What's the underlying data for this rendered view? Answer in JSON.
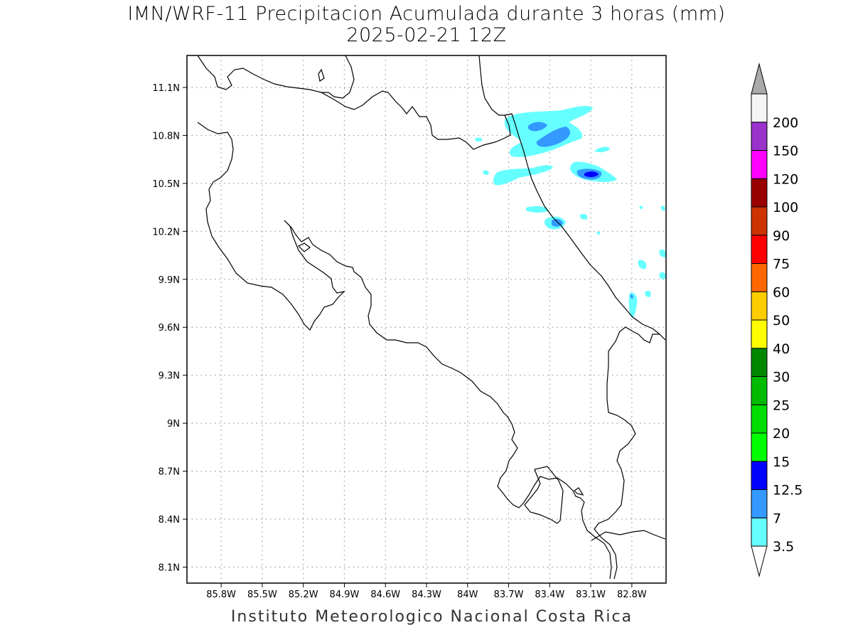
{
  "title": {
    "line1": "IMN/WRF-11 Precipitacion Acumulada durante 3 horas (mm)",
    "line2": "2025-02-21 12Z"
  },
  "footer": "Instituto Meteorologico Nacional Costa Rica",
  "map": {
    "lon_range": [
      -86.05,
      -82.55
    ],
    "lat_range": [
      8.0,
      11.3
    ],
    "lon_ticks": [
      {
        "value": -85.8,
        "label": "85.8W"
      },
      {
        "value": -85.5,
        "label": "85.5W"
      },
      {
        "value": -85.2,
        "label": "85.2W"
      },
      {
        "value": -84.9,
        "label": "84.9W"
      },
      {
        "value": -84.6,
        "label": "84.6W"
      },
      {
        "value": -84.3,
        "label": "84.3W"
      },
      {
        "value": -84.0,
        "label": "84W"
      },
      {
        "value": -83.7,
        "label": "83.7W"
      },
      {
        "value": -83.4,
        "label": "83.4W"
      },
      {
        "value": -83.1,
        "label": "83.1W"
      },
      {
        "value": -82.8,
        "label": "82.8W"
      }
    ],
    "lat_ticks": [
      {
        "value": 11.1,
        "label": "11.1N"
      },
      {
        "value": 10.8,
        "label": "10.8N"
      },
      {
        "value": 10.5,
        "label": "10.5N"
      },
      {
        "value": 10.2,
        "label": "10.2N"
      },
      {
        "value": 9.9,
        "label": "9.9N"
      },
      {
        "value": 9.6,
        "label": "9.6N"
      },
      {
        "value": 9.3,
        "label": "9.3N"
      },
      {
        "value": 9.0,
        "label": "9N"
      },
      {
        "value": 8.7,
        "label": "8.7N"
      },
      {
        "value": 8.4,
        "label": "8.4N"
      },
      {
        "value": 8.1,
        "label": "8.1N"
      }
    ],
    "grid": true
  },
  "colorbar": {
    "levels": [
      {
        "label": "3.5",
        "color": "#66ffff"
      },
      {
        "label": "7",
        "color": "#3399ff"
      },
      {
        "label": "12.5",
        "color": "#0000ff"
      },
      {
        "label": "15",
        "color": "#00ff00"
      },
      {
        "label": "20",
        "color": "#00dd00"
      },
      {
        "label": "25",
        "color": "#00bb00"
      },
      {
        "label": "30",
        "color": "#008800"
      },
      {
        "label": "40",
        "color": "#ffff00"
      },
      {
        "label": "50",
        "color": "#ffcc00"
      },
      {
        "label": "60",
        "color": "#ff6600"
      },
      {
        "label": "75",
        "color": "#ff0000"
      },
      {
        "label": "90",
        "color": "#cc3300"
      },
      {
        "label": "100",
        "color": "#990000"
      },
      {
        "label": "120",
        "color": "#ff00ff"
      },
      {
        "label": "150",
        "color": "#9933cc"
      },
      {
        "label": "200",
        "color": "#f5f5f5"
      }
    ],
    "top_arrow_color": "#aaaaaa",
    "bottom_arrow_color": "#ffffff"
  }
}
